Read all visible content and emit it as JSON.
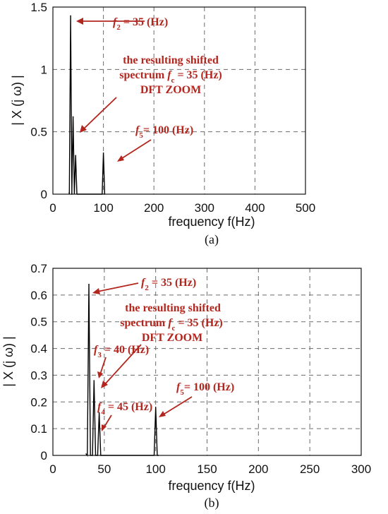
{
  "chart_data": [
    {
      "type": "line",
      "panel_label": "(a)",
      "xlabel": "frequency f(Hz)",
      "ylabel": "| X (j ω) |",
      "xlim": [
        0,
        500
      ],
      "ylim": [
        0,
        1.5
      ],
      "xticks": [
        "0",
        "100",
        "200",
        "300",
        "400",
        "500"
      ],
      "yticks": [
        "0",
        "0.5",
        "1",
        "1.5"
      ],
      "grid": true,
      "peaks": [
        {
          "x": 35,
          "y": 1.43
        },
        {
          "x": 40,
          "y": 0.62
        },
        {
          "x": 45,
          "y": 0.31
        },
        {
          "x": 100,
          "y": 0.33
        }
      ],
      "annotations": [
        {
          "prefix": "f",
          "sub": "2",
          "text": " = 35 (Hz)"
        },
        {
          "text": "the resulting shifted"
        },
        {
          "prefix": "spectrum ",
          "ital": "f",
          "sub": "c",
          "text": " = 35 (Hz)"
        },
        {
          "text": "DFT ZOOM"
        },
        {
          "prefix": "f",
          "sub": "5",
          "text": "= 100 (Hz)"
        }
      ]
    },
    {
      "type": "line",
      "panel_label": "(b)",
      "xlabel": "frequency f(Hz)",
      "ylabel": "| X (j ω) |",
      "xlim": [
        0,
        300
      ],
      "ylim": [
        0,
        0.7
      ],
      "xticks": [
        "0",
        "50",
        "100",
        "150",
        "200",
        "250",
        "300"
      ],
      "yticks": [
        "0",
        "0.1",
        "0.2",
        "0.3",
        "0.4",
        "0.5",
        "0.6",
        "0.7"
      ],
      "grid": true,
      "peaks": [
        {
          "x": 35,
          "y": 0.64
        },
        {
          "x": 40,
          "y": 0.28
        },
        {
          "x": 45,
          "y": 0.16
        },
        {
          "x": 100,
          "y": 0.18
        }
      ],
      "annotations": [
        {
          "prefix": "f",
          "sub": "2",
          "text": " = 35 (Hz)"
        },
        {
          "text": "the resulting shifted"
        },
        {
          "prefix": "spectrum ",
          "ital": "f",
          "sub": "c",
          "text": " = 35 (Hz)"
        },
        {
          "text": "DFT ZOOM"
        },
        {
          "prefix": "f",
          "sub": "3",
          "text": " = 40 (Hz)"
        },
        {
          "prefix": "f",
          "sub": "4",
          "text": " = 45 (Hz)"
        },
        {
          "prefix": "f",
          "sub": "5",
          "text": "= 100 (Hz)"
        }
      ]
    }
  ]
}
